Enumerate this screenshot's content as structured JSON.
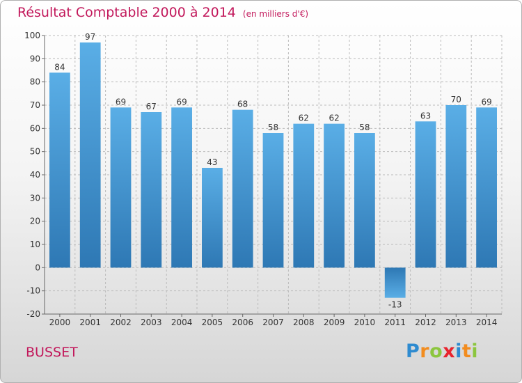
{
  "header": {
    "title": "Résultat Comptable 2000 à 2014",
    "subtitle": "(en milliers d'€)"
  },
  "footer": {
    "place": "BUSSET",
    "brand": "Proxiti",
    "brand_letters": [
      {
        "ch": "P",
        "color": "#2e8bd0"
      },
      {
        "ch": "r",
        "color": "#f28c1e"
      },
      {
        "ch": "o",
        "color": "#8cc63e"
      },
      {
        "ch": "x",
        "color": "#e8232d"
      },
      {
        "ch": "i",
        "color": "#2e8bd0"
      },
      {
        "ch": "t",
        "color": "#f28c1e"
      },
      {
        "ch": "i",
        "color": "#8cc63e"
      }
    ]
  },
  "colors": {
    "title": "#c2185b",
    "bar_top": "#5aaee6",
    "bar_bottom": "#2e78b4",
    "grid": "#bbbbbb",
    "axis_text": "#333333"
  },
  "chart_data": {
    "type": "bar",
    "title": "Résultat Comptable 2000 à 2014",
    "subtitle": "(en milliers d'€)",
    "xlabel": "",
    "ylabel": "",
    "categories": [
      "2000",
      "2001",
      "2002",
      "2003",
      "2004",
      "2005",
      "2006",
      "2007",
      "2008",
      "2009",
      "2010",
      "2011",
      "2012",
      "2013",
      "2014"
    ],
    "values": [
      84,
      97,
      69,
      67,
      69,
      43,
      68,
      58,
      62,
      62,
      58,
      -13,
      63,
      70,
      69
    ],
    "value_labels": [
      "84",
      "97",
      "69",
      "67",
      "69",
      "43",
      "68",
      "58",
      "62",
      "62",
      "58",
      "-13",
      "63",
      "70",
      "69"
    ],
    "ylim": [
      -20,
      100
    ],
    "yticks": [
      -20,
      -10,
      0,
      10,
      20,
      30,
      40,
      50,
      60,
      70,
      80,
      90,
      100
    ],
    "ytick_labels": [
      "-20",
      "-10",
      "0",
      "10",
      "20",
      "30",
      "40",
      "50",
      "60",
      "70",
      "80",
      "90",
      "100"
    ],
    "grid": true,
    "legend": "none"
  }
}
